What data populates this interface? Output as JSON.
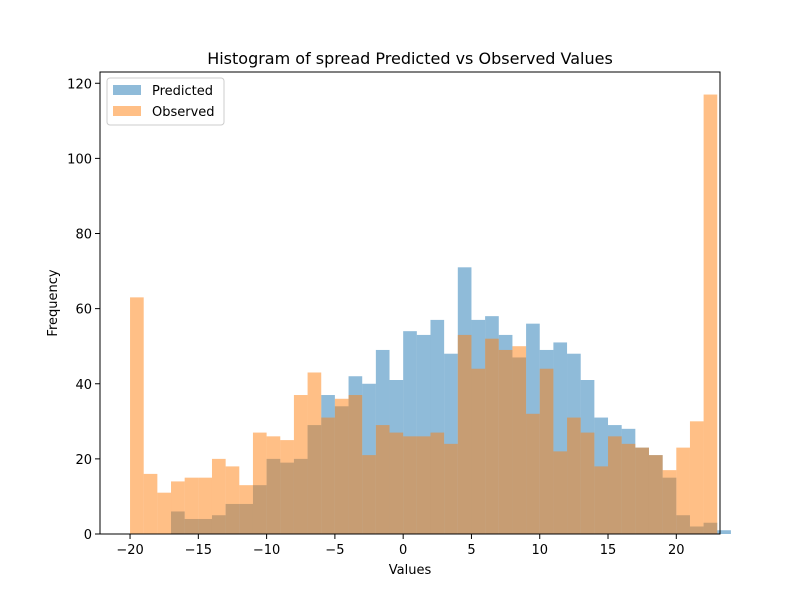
{
  "chart_data": {
    "type": "bar",
    "title": "Histogram of spread Predicted vs Observed Values",
    "xlabel": "Values",
    "ylabel": "Frequency",
    "xlim": [
      -22.2,
      23.2
    ],
    "ylim": [
      0,
      123
    ],
    "bin_start": -20,
    "bin_width": 1,
    "x_ticks": [
      -20,
      -15,
      -10,
      -5,
      0,
      5,
      10,
      15,
      20
    ],
    "y_ticks": [
      0,
      20,
      40,
      60,
      80,
      100,
      120
    ],
    "legend_position": "top-left",
    "series": [
      {
        "name": "Predicted",
        "color": "#1f77b4",
        "opacity": 0.5,
        "values": [
          0,
          0,
          0,
          6,
          4,
          4,
          5,
          8,
          8,
          13,
          20,
          19,
          20,
          29,
          37,
          34,
          42,
          40,
          49,
          41,
          54,
          53,
          57,
          48,
          71,
          57,
          58,
          53,
          47,
          56,
          49,
          51,
          48,
          41,
          31,
          29,
          28,
          23,
          21,
          15,
          5,
          2,
          3,
          1
        ]
      },
      {
        "name": "Observed",
        "color": "#ff7f0e",
        "opacity": 0.5,
        "values": [
          63,
          16,
          11,
          14,
          15,
          15,
          20,
          18,
          13,
          27,
          26,
          25,
          37,
          43,
          31,
          36,
          37,
          21,
          29,
          27,
          26,
          26,
          27,
          24,
          53,
          44,
          52,
          49,
          50,
          32,
          44,
          22,
          31,
          27,
          18,
          26,
          24,
          23,
          21,
          17,
          23,
          30,
          117,
          0
        ]
      }
    ]
  }
}
